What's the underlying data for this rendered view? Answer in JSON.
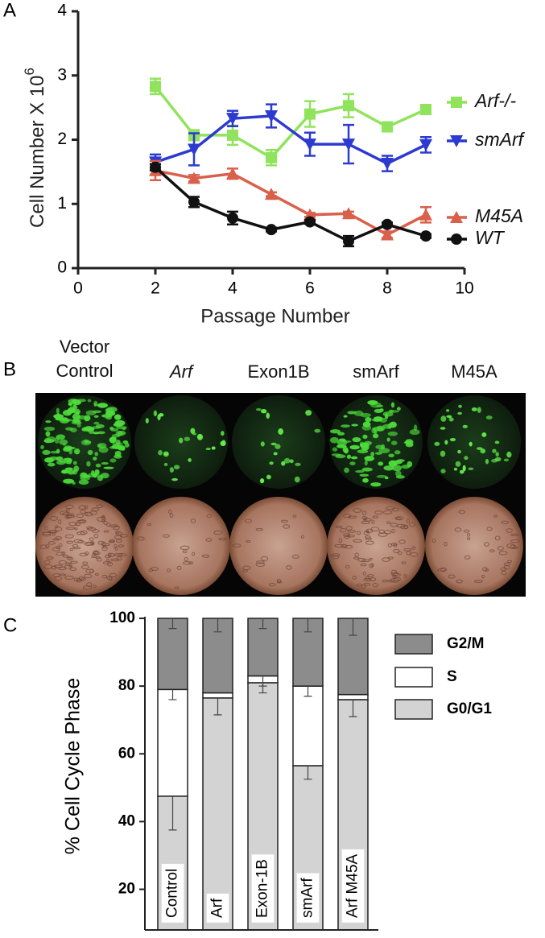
{
  "panel_labels": [
    "A",
    "B",
    "C"
  ],
  "panel_b": {
    "columns": [
      {
        "label": "Vector Control",
        "italic": false
      },
      {
        "label": "Arf",
        "italic": true
      },
      {
        "label": "Exon1B",
        "italic": false
      },
      {
        "label": "smArf",
        "italic": false
      },
      {
        "label": "M45A",
        "italic": false
      }
    ]
  },
  "chart_data": [
    {
      "type": "line",
      "x_label": "Passage Number",
      "y_label": "Cell Number X 10",
      "y_label_superscript": "6",
      "xlim": [
        0,
        10
      ],
      "xticks": [
        0,
        2,
        4,
        6,
        8,
        10
      ],
      "ylim": [
        0,
        4
      ],
      "yticks": [
        0,
        1,
        2,
        3,
        4
      ],
      "x": [
        2,
        3,
        4,
        5,
        6,
        7,
        8,
        9
      ],
      "series": [
        {
          "name": "Arf-/-",
          "color": "#90e35c",
          "marker": "square",
          "values": [
            2.83,
            2.07,
            2.07,
            1.72,
            2.4,
            2.53,
            2.2,
            2.47
          ],
          "errors": [
            0.12,
            0.08,
            0.15,
            0.12,
            0.2,
            0.18,
            0.03,
            0.05
          ]
        },
        {
          "name": "smArf",
          "color": "#2c3ad0",
          "marker": "triangle-down",
          "values": [
            1.65,
            1.85,
            2.33,
            2.37,
            1.93,
            1.93,
            1.63,
            1.92
          ],
          "errors": [
            0.12,
            0.25,
            0.12,
            0.18,
            0.18,
            0.3,
            0.12,
            0.12
          ]
        },
        {
          "name": "M45A",
          "color": "#d9604b",
          "marker": "triangle-up",
          "values": [
            1.52,
            1.4,
            1.47,
            1.15,
            0.83,
            0.85,
            0.52,
            0.83
          ],
          "errors": [
            0.15,
            0.05,
            0.08,
            0.03,
            0.03,
            0.03,
            0.05,
            0.12
          ]
        },
        {
          "name": "WT",
          "color": "#111111",
          "marker": "circle",
          "values": [
            1.57,
            1.03,
            0.78,
            0.6,
            0.72,
            0.42,
            0.68,
            0.5
          ],
          "errors": [
            0.05,
            0.08,
            0.1,
            0.03,
            0.03,
            0.08,
            0.03,
            0.03
          ]
        }
      ]
    },
    {
      "type": "stacked-bar",
      "y_label": "% Cell Cycle Phase",
      "ylim": [
        8,
        100
      ],
      "yticks": [
        20,
        40,
        60,
        80,
        100
      ],
      "categories": [
        "Control",
        "Arf",
        "Exon-1B",
        "smArf",
        "Arf M45A"
      ],
      "series": [
        {
          "name": "G0/G1",
          "color": "#d3d3d3",
          "values": [
            47.5,
            76.5,
            81,
            56.5,
            76
          ],
          "errors": [
            10,
            5,
            3,
            4,
            5
          ]
        },
        {
          "name": "S",
          "color": "#ffffff",
          "values": [
            31.5,
            1.5,
            2,
            23.5,
            1.5
          ],
          "errors": [
            3,
            null,
            3,
            3,
            null
          ]
        },
        {
          "name": "G2/M",
          "color": "#8c8c8c",
          "values": [
            21,
            22,
            17,
            20,
            22.5
          ],
          "errors": [
            3,
            4,
            3,
            4,
            5
          ]
        }
      ]
    }
  ]
}
